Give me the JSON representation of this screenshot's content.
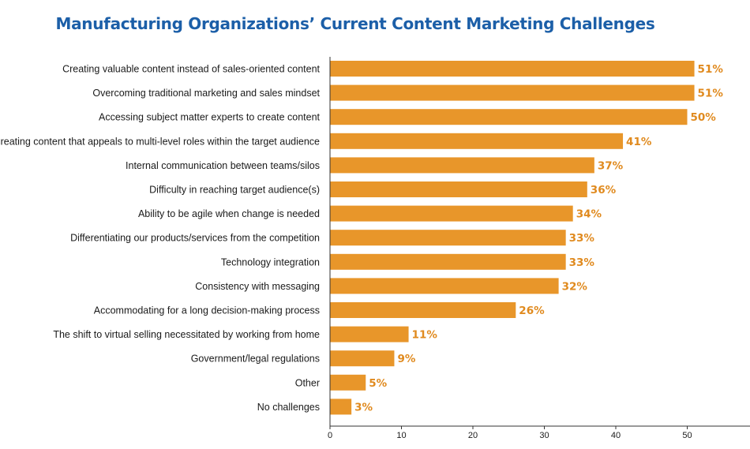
{
  "chart_data": {
    "type": "bar",
    "orientation": "horizontal",
    "title": "Manufacturing Organizations’ Current Content Marketing Challenges",
    "categories": [
      "Creating valuable content instead of sales-oriented content",
      "Overcoming traditional marketing and sales mindset",
      "Accessing subject matter experts to create content",
      "Creating content that appeals to multi-level roles within the target audience",
      "Internal communication between teams/silos",
      "Difficulty in reaching target audience(s)",
      "Ability to be agile when change is needed",
      "Differentiating our products/services from the competition",
      "Technology integration",
      "Consistency with messaging",
      "Accommodating for a long decision-making process",
      "The shift to virtual selling necessitated by working from home",
      "Government/legal regulations",
      "Other",
      "No challenges"
    ],
    "values": [
      51,
      51,
      50,
      41,
      37,
      36,
      34,
      33,
      33,
      32,
      26,
      11,
      9,
      5,
      3
    ],
    "value_labels": [
      "51%",
      "51%",
      "50%",
      "41%",
      "37%",
      "36%",
      "34%",
      "33%",
      "33%",
      "32%",
      "26%",
      "11%",
      "9%",
      "5%",
      "3%"
    ],
    "xlim": [
      0,
      60
    ],
    "xticks": [
      0,
      10,
      20,
      30,
      40,
      50
    ],
    "xlabel": "",
    "ylabel": "",
    "grid": false,
    "legend": "none",
    "bar_color": "#e8962a",
    "label_color": "#e08a1e",
    "title_color": "#1c5fa8"
  }
}
